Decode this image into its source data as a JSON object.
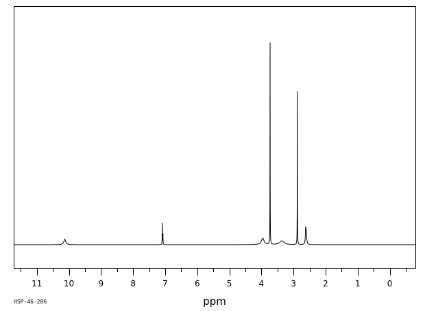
{
  "chart_data": {
    "type": "line",
    "title": "",
    "xlabel": "ppm",
    "ylabel": "",
    "sample_id": "HSP-46-286",
    "xlim": [
      11.7,
      -0.8
    ],
    "x_reversed": true,
    "ylim": [
      -0.12,
      1.23
    ],
    "grid": false,
    "legend": "none",
    "major_ticks": [
      11,
      10,
      9,
      8,
      7,
      6,
      5,
      4,
      3,
      2,
      1,
      0
    ],
    "minor_ticks": [
      11.5,
      10.5,
      9.5,
      8.5,
      7.5,
      6.5,
      5.5,
      4.5,
      3.5,
      2.5,
      1.5,
      0.5,
      -0.5
    ],
    "line_color": "#000000",
    "series": [
      {
        "peaks": [
          {
            "center": 10.13,
            "height": 0.025,
            "width": 0.035
          },
          {
            "center": 7.09,
            "height": 0.1,
            "width": 0.004
          },
          {
            "center": 7.07,
            "height": 0.05,
            "width": 0.004
          },
          {
            "center": 3.96,
            "height": 0.03,
            "width": 0.05
          },
          {
            "center": 3.73,
            "height": 1.0,
            "width": 0.003
          },
          {
            "center": 3.36,
            "height": 0.017,
            "width": 0.08
          },
          {
            "center": 2.88,
            "height": 0.76,
            "width": 0.003
          },
          {
            "center": 2.62,
            "height": 0.07,
            "width": 0.012
          },
          {
            "center": 2.6,
            "height": 0.05,
            "width": 0.012
          }
        ]
      }
    ]
  }
}
